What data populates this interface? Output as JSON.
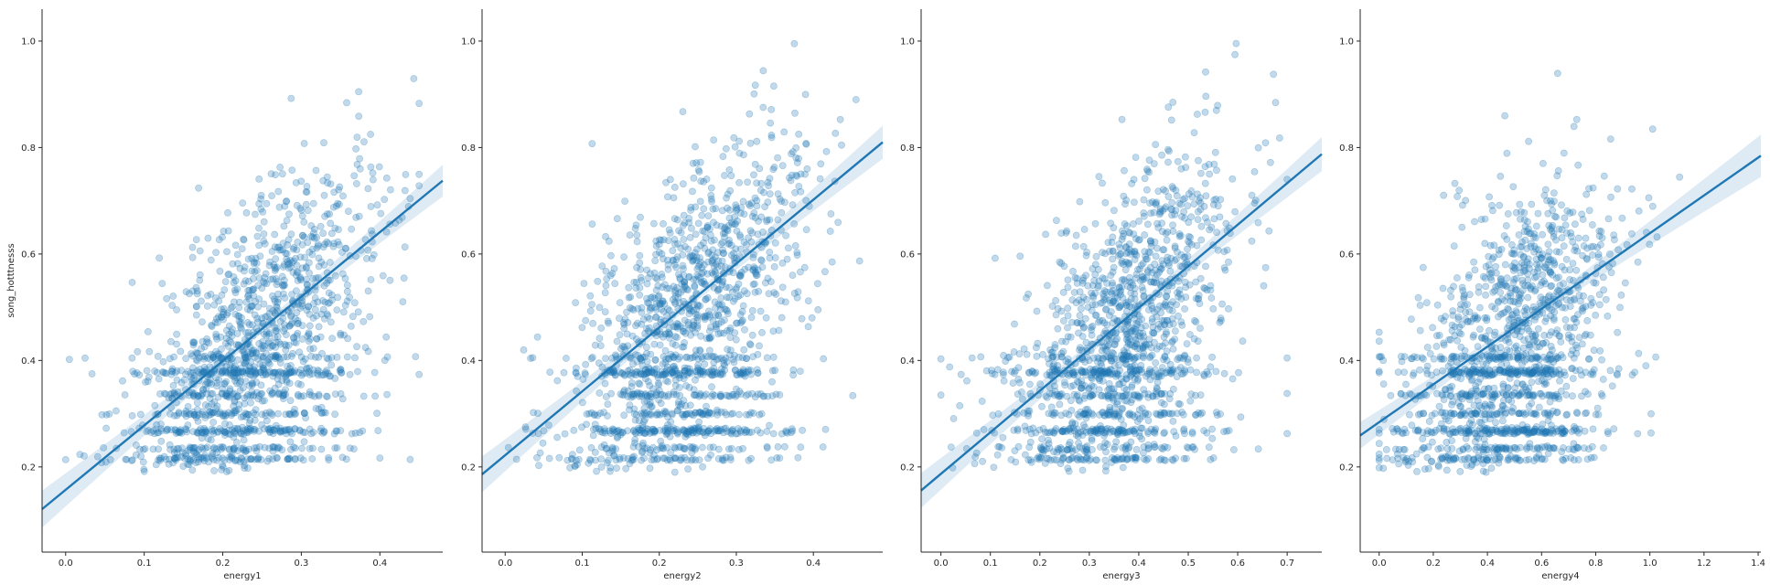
{
  "chart_data": [
    {
      "type": "scatter",
      "title": "",
      "xlabel": "energy1",
      "ylabel": "song_hotttnesss",
      "xlim": [
        -0.03,
        0.48
      ],
      "ylim": [
        0.04,
        1.06
      ],
      "xticks": [
        "0.0",
        "0.1",
        "0.2",
        "0.3",
        "0.4"
      ],
      "yticks": [
        "0.2",
        "0.4",
        "0.6",
        "0.8",
        "1.0"
      ],
      "grid": false,
      "scatter_color": "#1f77b4",
      "regression": {
        "slope": 1.21,
        "intercept": 0.157
      },
      "cloud": {
        "x_mean": 0.245,
        "x_sd": 0.075,
        "x_min": 0.0,
        "x_max": 0.45,
        "y_floor": 0.19,
        "stripe_center": 0.32,
        "stripe_slope": 0.9
      }
    },
    {
      "type": "scatter",
      "title": "",
      "xlabel": "energy2",
      "ylabel": "",
      "xlim": [
        -0.03,
        0.49
      ],
      "ylim": [
        0.04,
        1.06
      ],
      "xticks": [
        "0.0",
        "0.1",
        "0.2",
        "0.3",
        "0.4"
      ],
      "yticks": [
        "0.2",
        "0.4",
        "0.6",
        "0.8",
        "1.0"
      ],
      "grid": false,
      "scatter_color": "#1f77b4",
      "regression": {
        "slope": 1.2,
        "intercept": 0.222
      },
      "cloud": {
        "x_mean": 0.24,
        "x_sd": 0.075,
        "x_min": 0.0,
        "x_max": 0.46,
        "y_floor": 0.19,
        "stripe_center": 0.31,
        "stripe_slope": 0.9
      }
    },
    {
      "type": "scatter",
      "title": "",
      "xlabel": "energy3",
      "ylabel": "",
      "xlim": [
        -0.04,
        0.77
      ],
      "ylim": [
        0.04,
        1.06
      ],
      "xticks": [
        "0.0",
        "0.1",
        "0.2",
        "0.3",
        "0.4",
        "0.5",
        "0.6",
        "0.7"
      ],
      "yticks": [
        "0.2",
        "0.4",
        "0.6",
        "0.8",
        "1.0"
      ],
      "grid": false,
      "scatter_color": "#1f77b4",
      "regression": {
        "slope": 0.78,
        "intercept": 0.187
      },
      "cloud": {
        "x_mean": 0.37,
        "x_sd": 0.11,
        "x_min": 0.0,
        "x_max": 0.7,
        "y_floor": 0.19,
        "stripe_center": 0.47,
        "stripe_slope": 0.6
      }
    },
    {
      "type": "scatter",
      "title": "",
      "xlabel": "energy4",
      "ylabel": "",
      "xlim": [
        -0.07,
        1.41
      ],
      "ylim": [
        0.04,
        1.06
      ],
      "xticks": [
        "0.0",
        "0.2",
        "0.4",
        "0.6",
        "0.8",
        "1.0",
        "1.2",
        "1.4"
      ],
      "yticks": [
        "0.2",
        "0.4",
        "0.6",
        "0.8",
        "1.0"
      ],
      "grid": false,
      "scatter_color": "#1f77b4",
      "regression": {
        "slope": 0.355,
        "intercept": 0.284
      },
      "cloud": {
        "x_mean": 0.5,
        "x_sd": 0.2,
        "x_min": 0.0,
        "x_max": 1.35,
        "y_floor": 0.19,
        "stripe_center": 0.6,
        "stripe_slope": 0.3
      }
    }
  ]
}
